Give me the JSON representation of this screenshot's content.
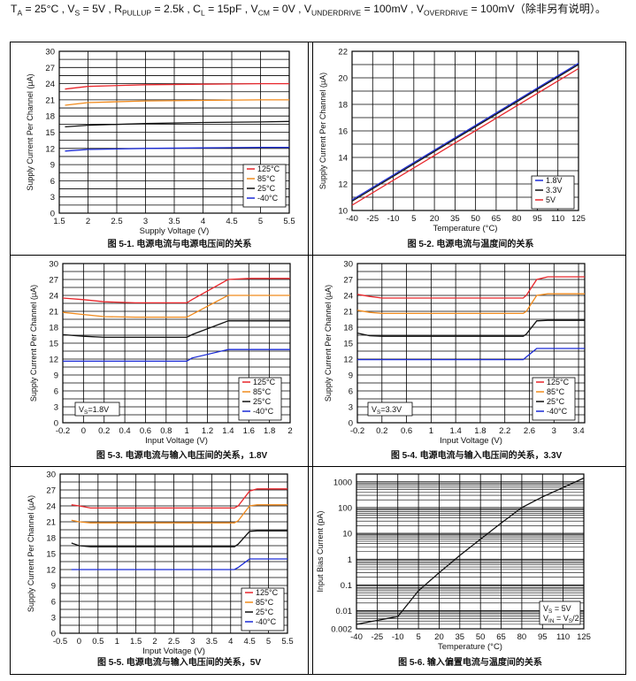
{
  "header": {
    "conditions": [
      [
        "T",
        "A",
        " = 25°C , "
      ],
      [
        "V",
        "S",
        " = 5V , "
      ],
      [
        "R",
        "PULLUP",
        " = 2.5k , "
      ],
      [
        "C",
        "L",
        " = 15pF , "
      ],
      [
        "V",
        "CM",
        " = 0V , "
      ],
      [
        "V",
        "UNDERDRIVE",
        " = 100mV , "
      ],
      [
        "V",
        "OVERDRIVE",
        " = 100mV（除非另有说明）。"
      ]
    ]
  },
  "chart_data": [
    {
      "id": "fig1",
      "type": "line",
      "caption": "图 5-1. 电源电流与电源电压间的关系",
      "xlabel": "Supply Voltage (V)",
      "ylabel": "Supply Current Per Channel (µA)",
      "xlim": [
        1.5,
        5.5
      ],
      "ylim": [
        0,
        30
      ],
      "xticks": [
        1.5,
        2,
        2.5,
        3,
        3.5,
        4,
        4.5,
        5,
        5.5
      ],
      "yticks": [
        0,
        3,
        6,
        9,
        12,
        15,
        18,
        21,
        24,
        27,
        30
      ],
      "grid": true,
      "legend_position": "bottom-right",
      "series": [
        {
          "name": "125°C",
          "color": "#e8262b",
          "x": [
            1.6,
            2,
            3,
            4,
            5,
            5.5
          ],
          "y": [
            23.0,
            23.5,
            23.8,
            23.9,
            24.0,
            24.0
          ]
        },
        {
          "name": "85°C",
          "color": "#f08a1c",
          "x": [
            1.6,
            2,
            3,
            4,
            5,
            5.5
          ],
          "y": [
            20.0,
            20.5,
            20.8,
            20.9,
            21.0,
            21.0
          ]
        },
        {
          "name": "25°C",
          "color": "#111111",
          "x": [
            1.6,
            2,
            3,
            4,
            5,
            5.5
          ],
          "y": [
            16.0,
            16.3,
            16.6,
            16.8,
            16.9,
            17.0
          ]
        },
        {
          "name": "-40°C",
          "color": "#1a2ad6",
          "x": [
            1.6,
            2,
            3,
            4,
            5,
            5.5
          ],
          "y": [
            11.5,
            11.8,
            12.0,
            12.1,
            12.2,
            12.2
          ]
        }
      ]
    },
    {
      "id": "fig2",
      "type": "line",
      "caption": "图 5-2. 电源电流与温度间的关系",
      "xlabel": "Temperature (°C)",
      "ylabel": "Supply Current Per Channel (µA)",
      "xlim": [
        -40,
        125
      ],
      "ylim": [
        10,
        22
      ],
      "xticks": [
        -40,
        -25,
        -10,
        5,
        20,
        35,
        50,
        65,
        80,
        95,
        110,
        125
      ],
      "yticks": [
        10,
        12,
        14,
        16,
        18,
        20,
        22
      ],
      "grid": true,
      "legend_position": "bottom-right",
      "series": [
        {
          "name": "1.8V",
          "color": "#1a2ad6",
          "x": [
            -40,
            125
          ],
          "y": [
            10.8,
            21.1
          ]
        },
        {
          "name": "3.3V",
          "color": "#111111",
          "x": [
            -40,
            125
          ],
          "y": [
            10.7,
            21.0
          ]
        },
        {
          "name": "5V",
          "color": "#e8262b",
          "x": [
            -40,
            125
          ],
          "y": [
            10.4,
            20.7
          ]
        }
      ]
    },
    {
      "id": "fig3",
      "type": "line",
      "caption": "图 5-3. 电源电流与输入电压间的关系，1.8V",
      "xlabel": "Input Voltage (V)",
      "ylabel": "Supply Current Per Channel (µA)",
      "xlim": [
        -0.2,
        2
      ],
      "ylim": [
        0,
        30
      ],
      "xticks": [
        -0.2,
        0,
        0.2,
        0.4,
        0.6,
        0.8,
        1,
        1.2,
        1.4,
        1.6,
        1.8,
        2
      ],
      "yticks": [
        0,
        3,
        6,
        9,
        12,
        15,
        18,
        21,
        24,
        27,
        30
      ],
      "grid": true,
      "legend_position": "bottom-right",
      "annotation": "VS=1.8V",
      "series": [
        {
          "name": "125°C",
          "color": "#e8262b",
          "x": [
            -0.2,
            0,
            0.2,
            0.5,
            1.0,
            1.05,
            1.4,
            1.6,
            2.0
          ],
          "y": [
            23.5,
            23.2,
            22.8,
            22.6,
            22.6,
            23.2,
            27.0,
            27.2,
            27.2
          ]
        },
        {
          "name": "85°C",
          "color": "#f08a1c",
          "x": [
            -0.2,
            0,
            0.2,
            0.5,
            1.0,
            1.05,
            1.4,
            1.6,
            2.0
          ],
          "y": [
            20.8,
            20.4,
            20.0,
            19.9,
            19.9,
            20.4,
            24.0,
            24.0,
            24.0
          ]
        },
        {
          "name": "25°C",
          "color": "#111111",
          "x": [
            -0.2,
            0,
            0.2,
            0.5,
            1.0,
            1.05,
            1.4,
            1.6,
            2.0
          ],
          "y": [
            16.6,
            16.3,
            16.1,
            16.1,
            16.1,
            16.6,
            19.2,
            19.2,
            19.2
          ]
        },
        {
          "name": "-40°C",
          "color": "#1a2ad6",
          "x": [
            -0.2,
            0,
            0.2,
            0.5,
            1.0,
            1.05,
            1.4,
            1.6,
            2.0
          ],
          "y": [
            11.6,
            11.6,
            11.6,
            11.6,
            11.6,
            12.2,
            13.8,
            13.8,
            13.8
          ]
        }
      ]
    },
    {
      "id": "fig4",
      "type": "line",
      "caption": "图 5-4. 电源电流与输入电压间的关系，3.3V",
      "xlabel": "Input Voltage (V)",
      "ylabel": "Supply Current Per Channel (µA)",
      "xlim": [
        -0.2,
        3.5
      ],
      "ylim": [
        0,
        30
      ],
      "xticks": [
        -0.2,
        0.2,
        0.6,
        1,
        1.4,
        1.8,
        2.2,
        2.6,
        3,
        3.4
      ],
      "xticklabels": [
        "-0.2",
        "0.2",
        "0.6",
        "1",
        "1.4",
        "1.8",
        "2.2",
        "2.6",
        "3",
        "3.4"
      ],
      "yticks": [
        0,
        3,
        6,
        9,
        12,
        15,
        18,
        21,
        24,
        27,
        30
      ],
      "grid": true,
      "legend_position": "bottom-right",
      "annotation": "VS=3.3V",
      "series": [
        {
          "name": "125°C",
          "color": "#e8262b",
          "x": [
            -0.2,
            0,
            0.2,
            1,
            2.5,
            2.55,
            2.72,
            2.9,
            3.5
          ],
          "y": [
            24.2,
            23.8,
            23.5,
            23.5,
            23.5,
            24.0,
            27.0,
            27.5,
            27.5
          ]
        },
        {
          "name": "85°C",
          "color": "#f08a1c",
          "x": [
            -0.2,
            0,
            0.2,
            1,
            2.5,
            2.55,
            2.72,
            2.9,
            3.5
          ],
          "y": [
            21.2,
            20.8,
            20.6,
            20.6,
            20.6,
            21.0,
            24.0,
            24.3,
            24.3
          ]
        },
        {
          "name": "25°C",
          "color": "#111111",
          "x": [
            -0.2,
            0,
            0.2,
            1,
            2.5,
            2.55,
            2.72,
            2.9,
            3.5
          ],
          "y": [
            16.9,
            16.4,
            16.3,
            16.3,
            16.3,
            16.7,
            19.2,
            19.3,
            19.3
          ]
        },
        {
          "name": "-40°C",
          "color": "#1a2ad6",
          "x": [
            -0.2,
            0,
            0.2,
            1,
            2.5,
            2.55,
            2.72,
            2.9,
            3.5
          ],
          "y": [
            11.9,
            11.9,
            11.9,
            11.9,
            11.9,
            12.4,
            14.0,
            14.0,
            14.0
          ]
        }
      ]
    },
    {
      "id": "fig5",
      "type": "line",
      "caption": "图 5-5. 电源电流与输入电压间的关系，5V",
      "xlabel": "Input Voltage (V)",
      "ylabel": "Supply Current Per Channel (µA)",
      "xlim": [
        -0.5,
        5.5
      ],
      "ylim": [
        0,
        30
      ],
      "xticks": [
        -0.5,
        0,
        0.5,
        1,
        1.5,
        2,
        2.5,
        3,
        3.5,
        4,
        4.5,
        5,
        5.5
      ],
      "yticks": [
        0,
        3,
        6,
        9,
        12,
        15,
        18,
        21,
        24,
        27,
        30
      ],
      "grid": true,
      "legend_position": "bottom-right",
      "series": [
        {
          "name": "125°C",
          "color": "#e8262b",
          "x": [
            -0.2,
            0,
            0.3,
            2,
            4.1,
            4.2,
            4.5,
            4.7,
            5.5
          ],
          "y": [
            24.2,
            24.0,
            23.6,
            23.6,
            23.6,
            24.0,
            26.8,
            27.2,
            27.2
          ]
        },
        {
          "name": "85°C",
          "color": "#f08a1c",
          "x": [
            -0.2,
            0,
            0.3,
            2,
            4.1,
            4.2,
            4.5,
            4.7,
            5.5
          ],
          "y": [
            21.3,
            21.0,
            20.8,
            20.8,
            20.8,
            21.2,
            24.0,
            24.2,
            24.2
          ]
        },
        {
          "name": "25°C",
          "color": "#111111",
          "x": [
            -0.2,
            0,
            0.3,
            2,
            4.1,
            4.2,
            4.5,
            4.7,
            5.5
          ],
          "y": [
            17.0,
            16.5,
            16.3,
            16.3,
            16.3,
            16.8,
            19.2,
            19.3,
            19.3
          ]
        },
        {
          "name": "-40°C",
          "color": "#1a2ad6",
          "x": [
            -0.2,
            0,
            0.3,
            2,
            4.1,
            4.2,
            4.5,
            4.7,
            5.5
          ],
          "y": [
            12.0,
            12.0,
            12.0,
            12.0,
            12.0,
            12.4,
            14.0,
            14.0,
            14.0
          ]
        }
      ]
    },
    {
      "id": "fig6",
      "type": "line",
      "scale_y": "log",
      "caption": "图 5-6. 输入偏置电流与温度间的关系",
      "xlabel": "Temperature (°C)",
      "ylabel": "Input Bias Current (pA)",
      "xlim": [
        -40,
        125
      ],
      "ylim": [
        0.002,
        2000
      ],
      "xticks": [
        -40,
        -25,
        -10,
        5,
        20,
        35,
        50,
        65,
        80,
        95,
        110,
        125
      ],
      "yticks": [
        0.002,
        0.01,
        0.1,
        1,
        10,
        100,
        1000
      ],
      "yticklabels": [
        "0.002",
        "0.01",
        "0.1",
        "1",
        "10",
        "100",
        "1000"
      ],
      "grid": true,
      "annotation": [
        "VS = 5V",
        "VIN = VS/2"
      ],
      "series": [
        {
          "color": "#111111",
          "x": [
            -40,
            -10,
            5,
            20,
            35,
            50,
            65,
            80,
            95,
            110,
            125
          ],
          "y": [
            0.003,
            0.006,
            0.06,
            0.3,
            1.4,
            6,
            25,
            100,
            260,
            600,
            1400
          ]
        }
      ]
    }
  ]
}
